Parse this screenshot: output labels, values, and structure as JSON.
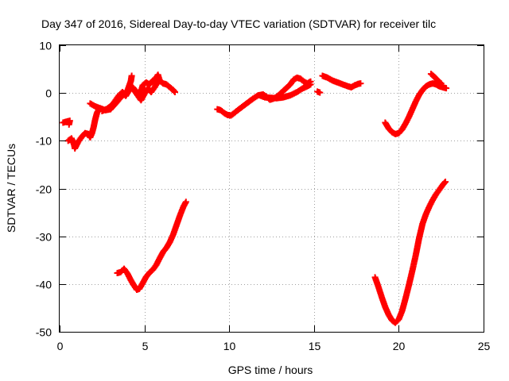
{
  "chart_data": {
    "type": "scatter",
    "title": "Day 347 of 2016, Sidereal Day-to-day VTEC variation (SDTVAR) for receiver tilc",
    "xlabel": "GPS time / hours",
    "ylabel": "SDTVAR / TECUs",
    "xlim": [
      0,
      25
    ],
    "ylim": [
      -50,
      10
    ],
    "xticks": [
      0,
      5,
      10,
      15,
      20,
      25
    ],
    "yticks": [
      -50,
      -40,
      -30,
      -20,
      -10,
      0,
      10
    ],
    "grid": true,
    "legend": "none",
    "marker": "plus",
    "color": "#ff0000",
    "series": [
      {
        "segments": [
          [
            [
              0.2,
              -6.2
            ],
            [
              0.4,
              -6.0
            ],
            [
              0.6,
              -5.8
            ],
            [
              0.55,
              -6.6
            ]
          ],
          [
            [
              0.5,
              -10.0
            ],
            [
              0.7,
              -9.5
            ],
            [
              0.85,
              -10.8
            ],
            [
              0.9,
              -11.6
            ],
            [
              1.1,
              -10.2
            ],
            [
              1.3,
              -9.2
            ],
            [
              1.5,
              -8.4
            ],
            [
              1.7,
              -8.6
            ],
            [
              1.8,
              -9.3
            ],
            [
              1.9,
              -8.5
            ],
            [
              2.0,
              -7.2
            ],
            [
              2.1,
              -5.5
            ],
            [
              2.2,
              -4.2
            ],
            [
              2.3,
              -3.5
            ]
          ],
          [
            [
              1.8,
              -2.2
            ],
            [
              2.1,
              -2.8
            ],
            [
              2.4,
              -3.2
            ],
            [
              2.7,
              -3.6
            ],
            [
              3.0,
              -3.4
            ],
            [
              3.2,
              -2.6
            ],
            [
              3.4,
              -1.8
            ],
            [
              3.6,
              -0.9
            ],
            [
              3.8,
              -0.3
            ],
            [
              4.0,
              0.5
            ],
            [
              4.1,
              1.5
            ],
            [
              4.2,
              2.5
            ],
            [
              4.25,
              3.6
            ]
          ],
          [
            [
              2.5,
              -3.8
            ],
            [
              2.8,
              -3.3
            ],
            [
              3.1,
              -2.5
            ],
            [
              3.3,
              -1.5
            ],
            [
              3.5,
              -0.5
            ],
            [
              3.7,
              0.2
            ],
            [
              3.9,
              -0.6
            ],
            [
              4.1,
              0.6
            ],
            [
              4.3,
              1.2
            ],
            [
              4.5,
              0.4
            ],
            [
              4.7,
              -0.8
            ],
            [
              4.8,
              0.4
            ],
            [
              4.9,
              1.6
            ],
            [
              5.1,
              2.2
            ],
            [
              5.3,
              1.8
            ],
            [
              5.5,
              2.6
            ],
            [
              5.7,
              3.2
            ],
            [
              5.8,
              3.8
            ],
            [
              5.9,
              2.6
            ],
            [
              6.1,
              2.0
            ],
            [
              6.3,
              1.8
            ],
            [
              6.5,
              1.2
            ],
            [
              6.7,
              0.6
            ],
            [
              6.8,
              0.2
            ]
          ],
          [
            [
              4.4,
              0.5
            ],
            [
              4.6,
              -0.5
            ],
            [
              4.8,
              -1.5
            ],
            [
              5.0,
              -0.2
            ],
            [
              5.2,
              1.0
            ],
            [
              5.4,
              0.2
            ],
            [
              5.6,
              1.2
            ],
            [
              5.8,
              2.4
            ]
          ],
          [
            [
              3.4,
              -37.7
            ],
            [
              3.6,
              -37.5
            ],
            [
              3.8,
              -36.8
            ],
            [
              4.0,
              -37.8
            ],
            [
              4.2,
              -39.2
            ],
            [
              4.4,
              -40.4
            ],
            [
              4.55,
              -41.2
            ],
            [
              4.7,
              -41.0
            ],
            [
              4.9,
              -39.8
            ],
            [
              5.1,
              -38.5
            ],
            [
              5.3,
              -37.6
            ],
            [
              5.5,
              -37.0
            ],
            [
              5.7,
              -36.0
            ],
            [
              5.9,
              -34.6
            ],
            [
              6.1,
              -33.3
            ],
            [
              6.3,
              -32.4
            ],
            [
              6.5,
              -31.2
            ],
            [
              6.7,
              -29.6
            ],
            [
              6.9,
              -27.6
            ],
            [
              7.1,
              -25.6
            ],
            [
              7.3,
              -23.8
            ],
            [
              7.45,
              -22.8
            ]
          ],
          [
            [
              9.3,
              -3.4
            ],
            [
              9.5,
              -3.6
            ],
            [
              9.7,
              -4.2
            ],
            [
              9.9,
              -4.6
            ],
            [
              10.1,
              -4.7
            ],
            [
              10.3,
              -4.2
            ],
            [
              10.5,
              -3.6
            ],
            [
              10.8,
              -2.8
            ],
            [
              11.1,
              -2.0
            ],
            [
              11.4,
              -1.2
            ],
            [
              11.7,
              -0.5
            ],
            [
              12.0,
              -0.3
            ],
            [
              12.2,
              -0.8
            ],
            [
              12.4,
              -1.4
            ],
            [
              12.6,
              -1.2
            ],
            [
              12.8,
              -0.8
            ],
            [
              13.0,
              -0.2
            ],
            [
              13.3,
              0.8
            ],
            [
              13.6,
              1.8
            ],
            [
              13.8,
              2.8
            ],
            [
              14.0,
              3.2
            ],
            [
              14.2,
              3.0
            ],
            [
              14.4,
              2.4
            ],
            [
              14.6,
              2.0
            ],
            [
              14.8,
              2.4
            ]
          ],
          [
            [
              11.8,
              -0.5
            ],
            [
              12.1,
              -0.9
            ],
            [
              12.4,
              -1.0
            ],
            [
              12.8,
              -1.1
            ],
            [
              13.2,
              -0.9
            ],
            [
              13.6,
              -0.5
            ],
            [
              14.0,
              0.2
            ],
            [
              14.3,
              0.9
            ],
            [
              14.6,
              1.4
            ],
            [
              14.8,
              1.8
            ]
          ],
          [
            [
              15.2,
              0.3
            ],
            [
              15.35,
              0.1
            ]
          ],
          [
            [
              15.5,
              3.6
            ],
            [
              15.8,
              3.2
            ],
            [
              16.1,
              2.6
            ],
            [
              16.4,
              2.2
            ],
            [
              16.7,
              1.8
            ],
            [
              17.0,
              1.4
            ],
            [
              17.2,
              1.2
            ],
            [
              17.4,
              1.6
            ],
            [
              17.6,
              1.9
            ],
            [
              17.75,
              2.0
            ]
          ],
          [
            [
              19.2,
              -6.2
            ],
            [
              19.4,
              -7.4
            ],
            [
              19.6,
              -8.2
            ],
            [
              19.8,
              -8.6
            ],
            [
              20.0,
              -8.4
            ],
            [
              20.2,
              -7.6
            ],
            [
              20.4,
              -6.4
            ],
            [
              20.6,
              -5.0
            ],
            [
              20.8,
              -3.4
            ],
            [
              21.0,
              -1.8
            ],
            [
              21.2,
              -0.4
            ],
            [
              21.4,
              0.6
            ],
            [
              21.6,
              1.4
            ],
            [
              21.8,
              1.8
            ],
            [
              22.0,
              2.0
            ],
            [
              22.2,
              1.8
            ],
            [
              22.4,
              1.4
            ],
            [
              22.6,
              1.2
            ],
            [
              22.8,
              1.0
            ]
          ],
          [
            [
              21.9,
              4.0
            ],
            [
              22.1,
              3.4
            ],
            [
              22.3,
              2.6
            ],
            [
              22.5,
              2.0
            ]
          ],
          [
            [
              18.6,
              -38.6
            ],
            [
              18.8,
              -40.6
            ],
            [
              19.0,
              -42.8
            ],
            [
              19.2,
              -44.8
            ],
            [
              19.4,
              -46.4
            ],
            [
              19.6,
              -47.6
            ],
            [
              19.8,
              -48.1
            ],
            [
              20.0,
              -47.4
            ],
            [
              20.2,
              -45.6
            ],
            [
              20.4,
              -43.0
            ],
            [
              20.6,
              -40.2
            ],
            [
              20.8,
              -37.2
            ],
            [
              21.0,
              -34.0
            ],
            [
              21.2,
              -30.4
            ],
            [
              21.4,
              -27.4
            ],
            [
              21.6,
              -25.4
            ],
            [
              21.8,
              -23.8
            ],
            [
              22.0,
              -22.4
            ],
            [
              22.2,
              -21.2
            ],
            [
              22.4,
              -20.2
            ],
            [
              22.6,
              -19.2
            ],
            [
              22.75,
              -18.6
            ]
          ]
        ]
      }
    ]
  }
}
